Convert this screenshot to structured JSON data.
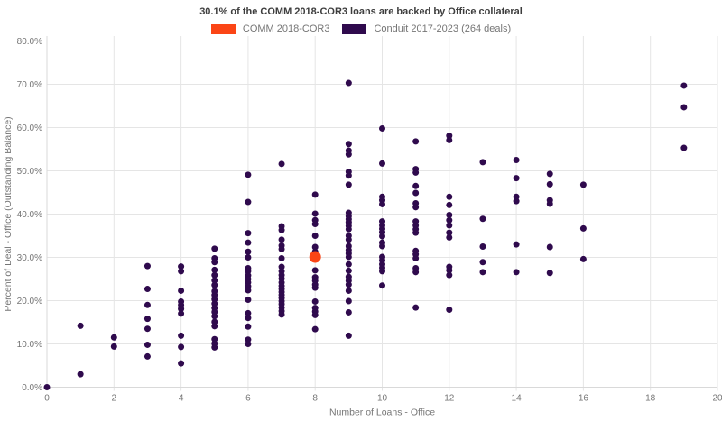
{
  "title": "30.1% of the COMM 2018-COR3 loans are backed by Office collateral",
  "legend": {
    "items": [
      {
        "label": "COMM 2018-COR3",
        "color": "#fb4516"
      },
      {
        "label": "Conduit 2017-2023 (264 deals)",
        "color": "#2f0a4d"
      }
    ]
  },
  "colors": {
    "background": "#ffffff",
    "gridline": "#e5e5e5",
    "axis_line": "#d9d9d9",
    "tick_text": "#757575",
    "title_text": "#3d3d3d",
    "highlight": "#fb4516",
    "conduit": "#2f0a4d"
  },
  "chart_data": {
    "type": "scatter",
    "title": "30.1% of the COMM 2018-COR3 loans are backed by Office collateral",
    "xlabel": "Number of Loans - Office",
    "ylabel": "Percent of Deal - Office (Outstanding Balance)",
    "xlim": [
      0,
      20
    ],
    "ylim": [
      0,
      80
    ],
    "grid": true,
    "legend_position": "top-center",
    "x_ticks": [
      {
        "v": 0,
        "label": "0"
      },
      {
        "v": 2,
        "label": "2"
      },
      {
        "v": 4,
        "label": "4"
      },
      {
        "v": 6,
        "label": "6"
      },
      {
        "v": 8,
        "label": "8"
      },
      {
        "v": 10,
        "label": "10"
      },
      {
        "v": 12,
        "label": "12"
      },
      {
        "v": 14,
        "label": "14"
      },
      {
        "v": 16,
        "label": "16"
      },
      {
        "v": 18,
        "label": "18"
      },
      {
        "v": 20,
        "label": "20"
      }
    ],
    "y_ticks": [
      {
        "v": 0,
        "label": "0.0%"
      },
      {
        "v": 10,
        "label": "10.0%"
      },
      {
        "v": 20,
        "label": "20.0%"
      },
      {
        "v": 30,
        "label": "30.0%"
      },
      {
        "v": 40,
        "label": "40.0%"
      },
      {
        "v": 50,
        "label": "50.0%"
      },
      {
        "v": 60,
        "label": "60.0%"
      },
      {
        "v": 70,
        "label": "70.0%"
      },
      {
        "v": 80,
        "label": "80.0%"
      }
    ],
    "series": [
      {
        "name": "Conduit 2017-2023 (264 deals)",
        "color": "#2f0a4d",
        "marker_radius": 3.5,
        "points": [
          [
            0,
            0.0
          ],
          [
            1,
            14.2
          ],
          [
            1,
            3.0
          ],
          [
            2,
            11.5
          ],
          [
            2,
            9.4
          ],
          [
            3,
            28.0
          ],
          [
            3,
            22.7
          ],
          [
            3,
            19.0
          ],
          [
            3,
            15.8
          ],
          [
            3,
            13.5
          ],
          [
            3,
            9.8
          ],
          [
            3,
            7.1
          ],
          [
            4,
            27.9
          ],
          [
            4,
            26.8
          ],
          [
            4,
            22.3
          ],
          [
            4,
            19.8
          ],
          [
            4,
            19.0
          ],
          [
            4,
            18.1
          ],
          [
            4,
            17.0
          ],
          [
            4,
            11.9
          ],
          [
            4,
            9.3
          ],
          [
            4,
            5.5
          ],
          [
            5,
            32.0
          ],
          [
            5,
            29.8
          ],
          [
            5,
            28.9
          ],
          [
            5,
            27.1
          ],
          [
            5,
            25.9
          ],
          [
            5,
            24.7
          ],
          [
            5,
            23.6
          ],
          [
            5,
            22.2
          ],
          [
            5,
            21.3
          ],
          [
            5,
            20.3
          ],
          [
            5,
            19.3
          ],
          [
            5,
            18.3
          ],
          [
            5,
            17.4
          ],
          [
            5,
            16.4
          ],
          [
            5,
            15.1
          ],
          [
            5,
            14.1
          ],
          [
            5,
            11.1
          ],
          [
            5,
            10.1
          ],
          [
            5,
            9.2
          ],
          [
            6,
            49.1
          ],
          [
            6,
            42.8
          ],
          [
            6,
            35.6
          ],
          [
            6,
            33.4
          ],
          [
            6,
            31.3
          ],
          [
            6,
            30.0
          ],
          [
            6,
            27.5
          ],
          [
            6,
            26.8
          ],
          [
            6,
            25.8
          ],
          [
            6,
            25.0
          ],
          [
            6,
            24.2
          ],
          [
            6,
            23.3
          ],
          [
            6,
            22.4
          ],
          [
            6,
            20.2
          ],
          [
            6,
            17.1
          ],
          [
            6,
            16.0
          ],
          [
            6,
            14.0
          ],
          [
            6,
            11.0
          ],
          [
            6,
            10.0
          ],
          [
            7,
            51.6
          ],
          [
            7,
            37.2
          ],
          [
            7,
            36.3
          ],
          [
            7,
            34.1
          ],
          [
            7,
            32.7
          ],
          [
            7,
            31.9
          ],
          [
            7,
            29.8
          ],
          [
            7,
            27.8
          ],
          [
            7,
            26.8
          ],
          [
            7,
            25.9
          ],
          [
            7,
            25.1
          ],
          [
            7,
            24.2
          ],
          [
            7,
            23.4
          ],
          [
            7,
            22.7
          ],
          [
            7,
            22.0
          ],
          [
            7,
            21.3
          ],
          [
            7,
            20.6
          ],
          [
            7,
            19.9
          ],
          [
            7,
            19.2
          ],
          [
            7,
            18.4
          ],
          [
            7,
            17.6
          ],
          [
            7,
            16.8
          ],
          [
            8,
            44.5
          ],
          [
            8,
            40.1
          ],
          [
            8,
            38.6
          ],
          [
            8,
            37.7
          ],
          [
            8,
            35.0
          ],
          [
            8,
            32.4
          ],
          [
            8,
            31.3
          ],
          [
            8,
            27.0
          ],
          [
            8,
            25.4
          ],
          [
            8,
            24.6
          ],
          [
            8,
            23.7
          ],
          [
            8,
            23.0
          ],
          [
            8,
            19.8
          ],
          [
            8,
            18.3
          ],
          [
            8,
            17.5
          ],
          [
            8,
            16.7
          ],
          [
            8,
            13.4
          ],
          [
            9,
            70.3
          ],
          [
            9,
            56.2
          ],
          [
            9,
            54.7
          ],
          [
            9,
            53.8
          ],
          [
            9,
            49.8
          ],
          [
            9,
            48.9
          ],
          [
            9,
            46.8
          ],
          [
            9,
            40.3
          ],
          [
            9,
            39.5
          ],
          [
            9,
            38.8
          ],
          [
            9,
            38.1
          ],
          [
            9,
            37.3
          ],
          [
            9,
            36.5
          ],
          [
            9,
            35.0
          ],
          [
            9,
            34.1
          ],
          [
            9,
            32.6
          ],
          [
            9,
            31.7
          ],
          [
            9,
            30.9
          ],
          [
            9,
            30.1
          ],
          [
            9,
            28.4
          ],
          [
            9,
            26.9
          ],
          [
            9,
            25.5
          ],
          [
            9,
            24.6
          ],
          [
            9,
            23.7
          ],
          [
            9,
            22.3
          ],
          [
            9,
            19.9
          ],
          [
            9,
            17.3
          ],
          [
            9,
            11.9
          ],
          [
            10,
            59.8
          ],
          [
            10,
            51.7
          ],
          [
            10,
            44.0
          ],
          [
            10,
            43.2
          ],
          [
            10,
            42.3
          ],
          [
            10,
            38.3
          ],
          [
            10,
            37.4
          ],
          [
            10,
            36.6
          ],
          [
            10,
            35.8
          ],
          [
            10,
            34.9
          ],
          [
            10,
            33.4
          ],
          [
            10,
            32.6
          ],
          [
            10,
            30.1
          ],
          [
            10,
            29.3
          ],
          [
            10,
            28.4
          ],
          [
            10,
            27.6
          ],
          [
            10,
            26.8
          ],
          [
            10,
            23.5
          ],
          [
            11,
            56.8
          ],
          [
            11,
            50.4
          ],
          [
            11,
            49.6
          ],
          [
            11,
            46.5
          ],
          [
            11,
            44.9
          ],
          [
            11,
            42.5
          ],
          [
            11,
            41.6
          ],
          [
            11,
            38.3
          ],
          [
            11,
            37.4
          ],
          [
            11,
            36.5
          ],
          [
            11,
            35.7
          ],
          [
            11,
            31.5
          ],
          [
            11,
            30.7
          ],
          [
            11,
            29.8
          ],
          [
            11,
            27.5
          ],
          [
            11,
            26.6
          ],
          [
            11,
            18.4
          ],
          [
            12,
            58.1
          ],
          [
            12,
            57.1
          ],
          [
            12,
            44.0
          ],
          [
            12,
            42.1
          ],
          [
            12,
            39.8
          ],
          [
            12,
            38.6
          ],
          [
            12,
            37.4
          ],
          [
            12,
            35.7
          ],
          [
            12,
            34.6
          ],
          [
            12,
            27.8
          ],
          [
            12,
            27.0
          ],
          [
            12,
            25.9
          ],
          [
            12,
            17.9
          ],
          [
            13,
            52.0
          ],
          [
            13,
            38.9
          ],
          [
            13,
            32.5
          ],
          [
            13,
            28.9
          ],
          [
            13,
            26.6
          ],
          [
            14,
            52.5
          ],
          [
            14,
            48.3
          ],
          [
            14,
            44.0
          ],
          [
            14,
            43.0
          ],
          [
            14,
            33.0
          ],
          [
            14,
            26.6
          ],
          [
            15,
            49.3
          ],
          [
            15,
            46.9
          ],
          [
            15,
            43.2
          ],
          [
            15,
            42.4
          ],
          [
            15,
            32.4
          ],
          [
            15,
            26.4
          ],
          [
            16,
            46.8
          ],
          [
            16,
            36.7
          ],
          [
            16,
            29.6
          ],
          [
            19,
            69.7
          ],
          [
            19,
            64.7
          ],
          [
            19,
            55.3
          ]
        ]
      },
      {
        "name": "COMM 2018-COR3",
        "color": "#fb4516",
        "marker_radius": 6.5,
        "points": [
          [
            8,
            30.1
          ]
        ]
      }
    ]
  }
}
